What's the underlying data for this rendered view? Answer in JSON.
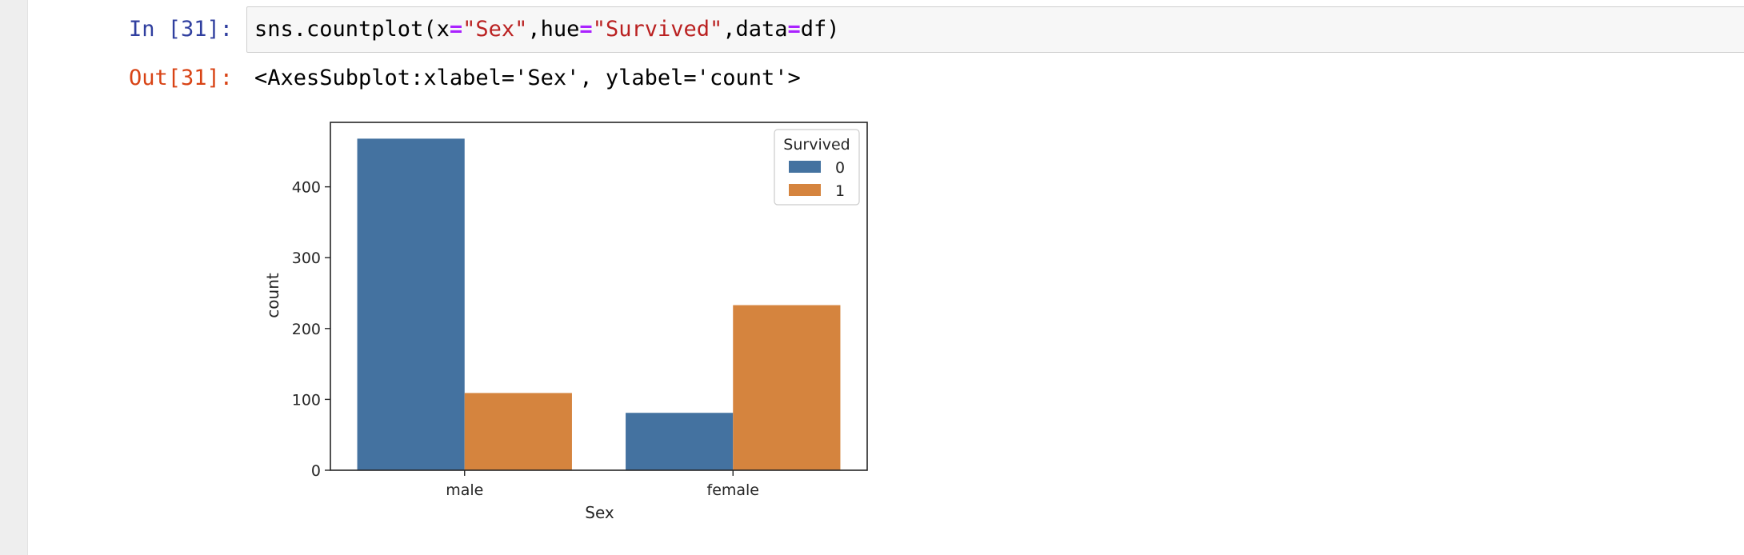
{
  "cell": {
    "in_prompt": "In [31]:",
    "out_prompt": "Out[31]:",
    "code_tokens": [
      {
        "text": "sns.countplot(x",
        "kind": "plain"
      },
      {
        "text": "=",
        "kind": "op"
      },
      {
        "text": "\"Sex\"",
        "kind": "str"
      },
      {
        "text": ",hue",
        "kind": "plain"
      },
      {
        "text": "=",
        "kind": "op"
      },
      {
        "text": "\"Survived\"",
        "kind": "str"
      },
      {
        "text": ",data",
        "kind": "plain"
      },
      {
        "text": "=",
        "kind": "op"
      },
      {
        "text": "df)",
        "kind": "plain"
      }
    ],
    "output_text": "<AxesSubplot:xlabel='Sex', ylabel='count'>"
  },
  "colors": {
    "series_0": "#4472a0",
    "series_1": "#d5843e"
  },
  "chart_data": {
    "type": "bar",
    "categories": [
      "male",
      "female"
    ],
    "series": [
      {
        "name": "0",
        "values": [
          468,
          81
        ]
      },
      {
        "name": "1",
        "values": [
          109,
          233
        ]
      }
    ],
    "xlabel": "Sex",
    "ylabel": "count",
    "ylim": [
      0,
      491
    ],
    "yticks": [
      0,
      100,
      200,
      300,
      400
    ],
    "legend": {
      "title": "Survived",
      "placement": "top-right"
    },
    "grid": false
  }
}
